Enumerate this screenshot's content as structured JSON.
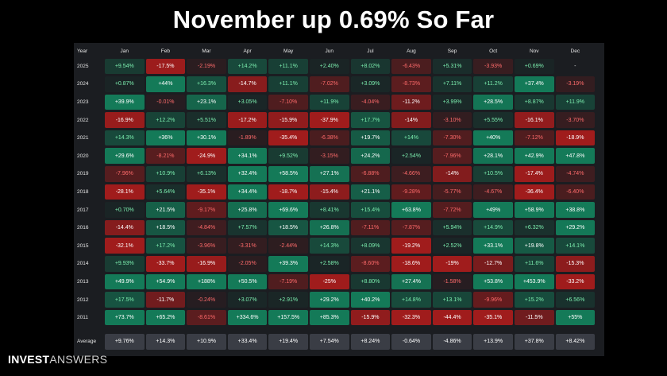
{
  "title": "November up 0.69% So Far",
  "table": {
    "year_header": "Year",
    "months": [
      "Jan",
      "Feb",
      "Mar",
      "Apr",
      "May",
      "Jun",
      "Jul",
      "Aug",
      "Sep",
      "Oct",
      "Nov",
      "Dec"
    ],
    "rows": [
      {
        "year": "2025",
        "values": [
          "+9.54%",
          "-17.5%",
          "-2.19%",
          "+14.2%",
          "+11.1%",
          "+2.40%",
          "+8.02%",
          "-6.43%",
          "+5.31%",
          "-3.93%",
          "+0.69%",
          "-"
        ]
      },
      {
        "year": "2024",
        "values": [
          "+0.87%",
          "+44%",
          "+16.3%",
          "-14.7%",
          "+11.1%",
          "-7.02%",
          "+3.09%",
          "-8.73%",
          "+7.11%",
          "+11.2%",
          "+37.4%",
          "-3.19%"
        ]
      },
      {
        "year": "2023",
        "values": [
          "+39.9%",
          "-0.01%",
          "+23.1%",
          "+3.05%",
          "-7.10%",
          "+11.9%",
          "-4.04%",
          "-11.2%",
          "+3.99%",
          "+28.5%",
          "+8.87%",
          "+11.9%"
        ]
      },
      {
        "year": "2022",
        "values": [
          "-16.9%",
          "+12.2%",
          "+5.51%",
          "-17.2%",
          "-15.9%",
          "-37.9%",
          "+17.7%",
          "-14%",
          "-3.10%",
          "+5.55%",
          "-16.1%",
          "-3.70%"
        ]
      },
      {
        "year": "2021",
        "values": [
          "+14.3%",
          "+36%",
          "+30.1%",
          "-1.89%",
          "-35.4%",
          "-6.38%",
          "+19.7%",
          "+14%",
          "-7.30%",
          "+40%",
          "-7.12%",
          "-18.9%"
        ]
      },
      {
        "year": "2020",
        "values": [
          "+29.6%",
          "-8.21%",
          "-24.9%",
          "+34.1%",
          "+9.52%",
          "-3.15%",
          "+24.2%",
          "+2.54%",
          "-7.96%",
          "+28.1%",
          "+42.9%",
          "+47.8%"
        ]
      },
      {
        "year": "2019",
        "values": [
          "-7.96%",
          "+10.9%",
          "+6.13%",
          "+32.4%",
          "+58.5%",
          "+27.1%",
          "-6.88%",
          "-4.66%",
          "-14%",
          "+10.5%",
          "-17.4%",
          "-4.74%"
        ]
      },
      {
        "year": "2018",
        "values": [
          "-28.1%",
          "+5.64%",
          "-35.1%",
          "+34.4%",
          "-18.7%",
          "-15.4%",
          "+21.1%",
          "-9.28%",
          "-5.77%",
          "-4.67%",
          "-36.4%",
          "-6.40%"
        ]
      },
      {
        "year": "2017",
        "values": [
          "+0.70%",
          "+21.5%",
          "-9.17%",
          "+25.8%",
          "+69.6%",
          "+8.41%",
          "+15.4%",
          "+63.8%",
          "-7.72%",
          "+49%",
          "+58.9%",
          "+38.8%"
        ]
      },
      {
        "year": "2016",
        "values": [
          "-14.4%",
          "+18.5%",
          "-4.84%",
          "+7.57%",
          "+18.5%",
          "+26.8%",
          "-7.11%",
          "-7.87%",
          "+5.94%",
          "+14.9%",
          "+6.32%",
          "+29.2%"
        ]
      },
      {
        "year": "2015",
        "values": [
          "-32.1%",
          "+17.2%",
          "-3.96%",
          "-3.31%",
          "-2.44%",
          "+14.3%",
          "+8.09%",
          "-19.2%",
          "+2.52%",
          "+33.1%",
          "+19.8%",
          "+14.1%"
        ]
      },
      {
        "year": "2014",
        "values": [
          "+9.93%",
          "-33.7%",
          "-16.9%",
          "-2.05%",
          "+39.3%",
          "+2.58%",
          "-8.60%",
          "-18.6%",
          "-19%",
          "-12.7%",
          "+11.6%",
          "-15.3%"
        ]
      },
      {
        "year": "2013",
        "values": [
          "+49.9%",
          "+54.9%",
          "+188%",
          "+50.5%",
          "-7.19%",
          "-25%",
          "+8.80%",
          "+27.4%",
          "-1.58%",
          "+53.8%",
          "+453.9%",
          "-33.2%"
        ]
      },
      {
        "year": "2012",
        "values": [
          "+17.5%",
          "-11.7%",
          "-0.24%",
          "+3.07%",
          "+2.91%",
          "+29.2%",
          "+40.2%",
          "+14.8%",
          "+13.1%",
          "-9.96%",
          "+15.2%",
          "+6.56%"
        ]
      },
      {
        "year": "2011",
        "values": [
          "+73.7%",
          "+65.2%",
          "-8.61%",
          "+334.6%",
          "+157.5%",
          "+85.3%",
          "-15.9%",
          "-32.3%",
          "-44.4%",
          "-35.1%",
          "-11.5%",
          "+55%"
        ]
      }
    ],
    "average": {
      "label": "Average",
      "values": [
        "+9.76%",
        "+14.3%",
        "+10.9%",
        "+33.4%",
        "+19.4%",
        "+7.54%",
        "+8.24%",
        "-0.64%",
        "-4.86%",
        "+13.9%",
        "+37.8%",
        "+8.42%"
      ]
    }
  },
  "colors": {
    "positive_text": "#7df0b0",
    "negative_text": "#ff6b6b",
    "positive_fill": "#147a58",
    "negative_fill": "#a01c1c",
    "panel_bg": "#1b1d21",
    "average_fill": "#3a3d45"
  },
  "logo": {
    "bold": "INVEST",
    "light": "ANSWERS"
  }
}
